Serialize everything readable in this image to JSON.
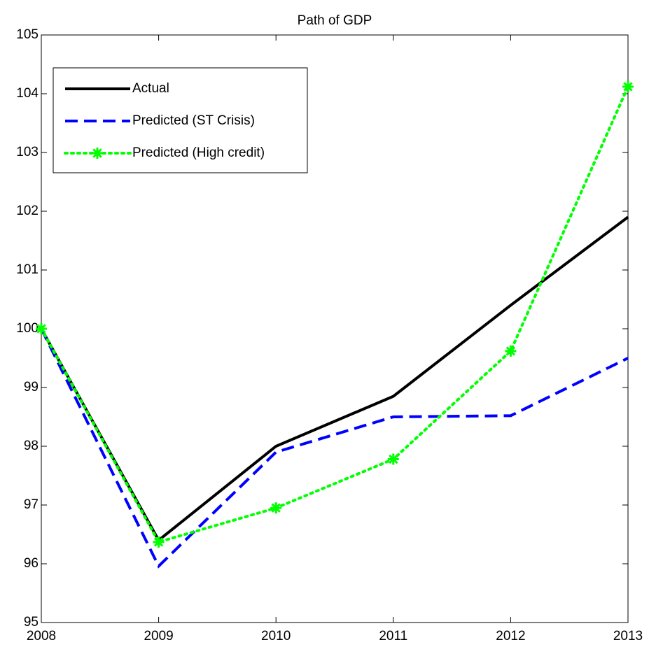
{
  "chart_data": {
    "type": "line",
    "title": "Path of GDP",
    "x": [
      2008,
      2009,
      2010,
      2011,
      2012,
      2013
    ],
    "xlim": [
      2008,
      2013
    ],
    "xticks": [
      2008,
      2009,
      2010,
      2011,
      2012,
      2013
    ],
    "ylim": [
      95,
      105
    ],
    "yticks": [
      95,
      96,
      97,
      98,
      99,
      100,
      101,
      102,
      103,
      104,
      105
    ],
    "legend": "upper left",
    "series": [
      {
        "name": "Actual",
        "color": "#000000",
        "style": "solid",
        "values": [
          100,
          96.4,
          98.0,
          98.85,
          100.4,
          101.9
        ]
      },
      {
        "name": "Predicted (ST Crisis)",
        "color": "#0000ff",
        "style": "dashed",
        "values": [
          100,
          95.96,
          97.9,
          98.5,
          98.52,
          99.5
        ]
      },
      {
        "name": "Predicted (High credit)",
        "color": "#00ff00",
        "style": "dotted",
        "marker": "asterisk",
        "values": [
          100,
          96.37,
          96.95,
          97.78,
          99.62,
          104.12
        ]
      }
    ]
  }
}
